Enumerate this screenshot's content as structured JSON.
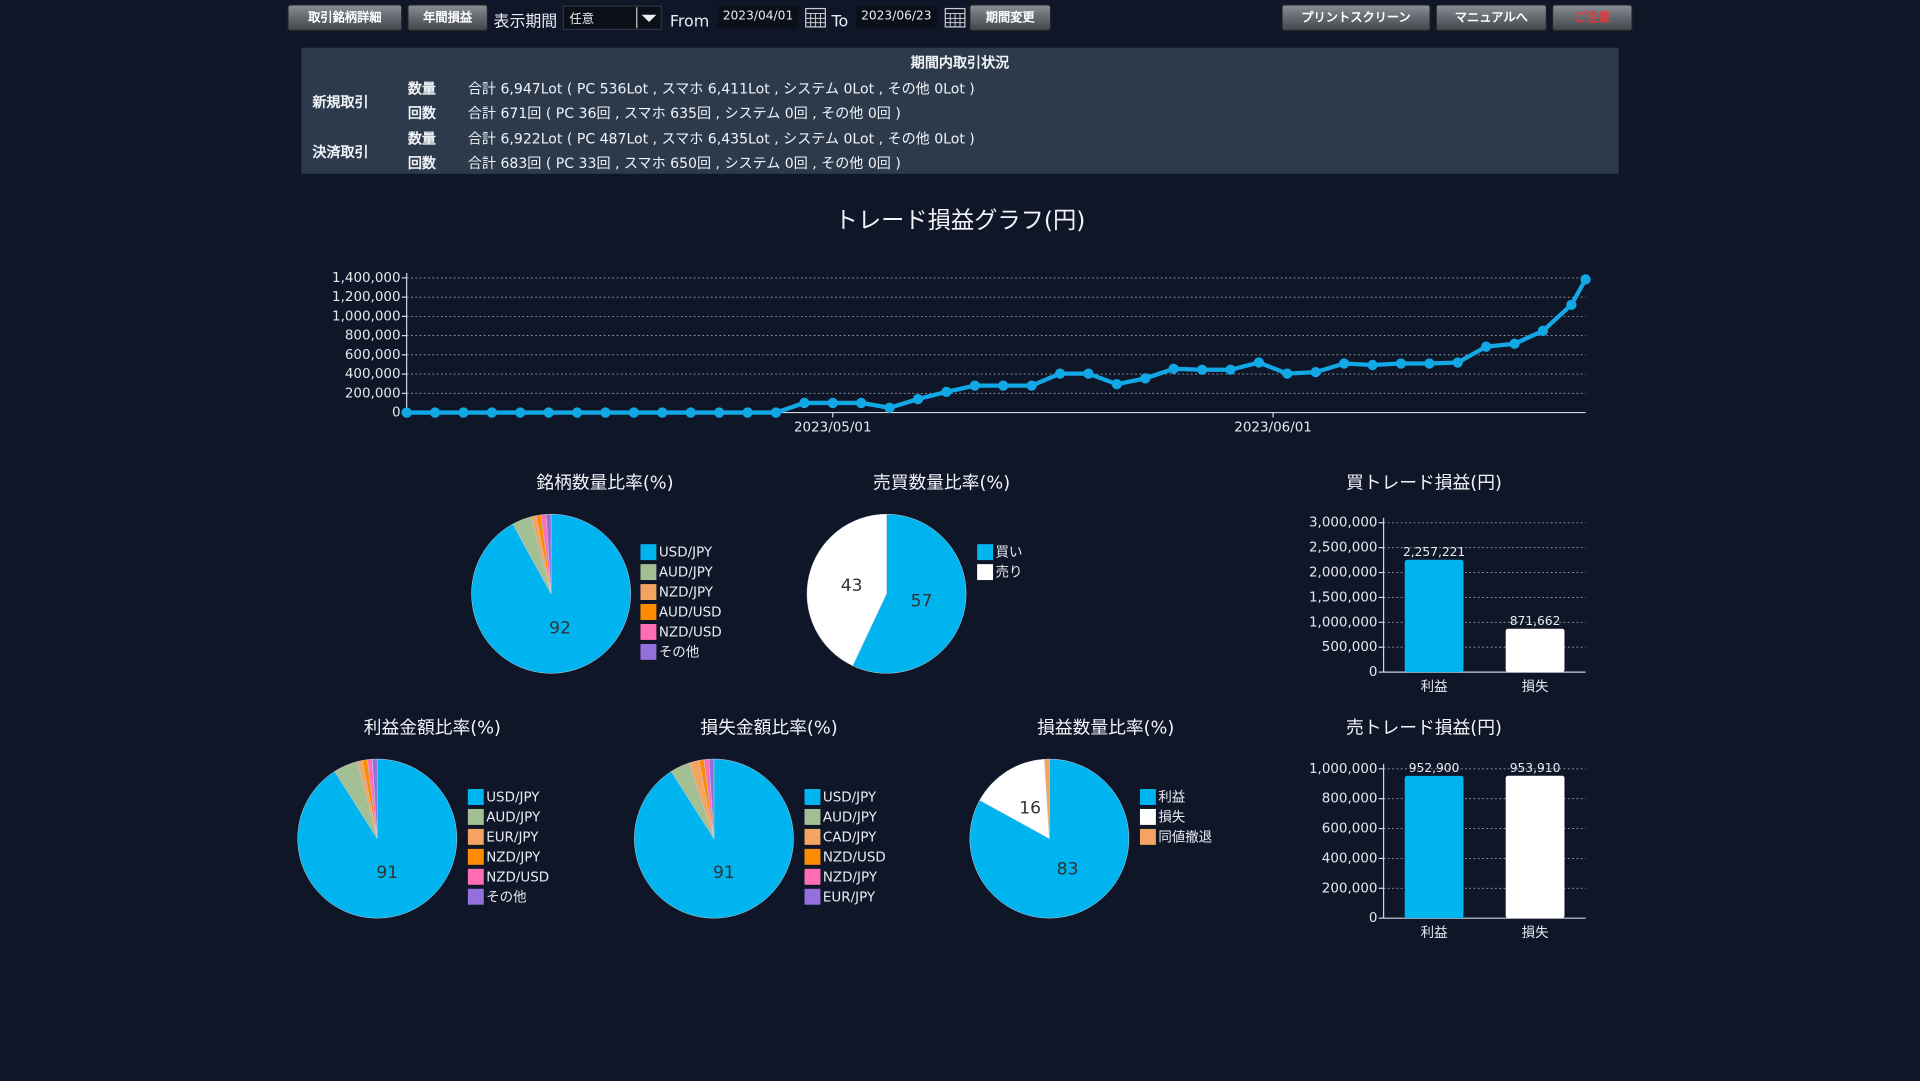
{
  "toolbar": {
    "buttons_left": [
      "取引銘柄詳細",
      "年間損益"
    ],
    "period_label": "表示期間",
    "period_select": "任意",
    "from_label": "From",
    "from_date": "2023/04/01",
    "to_label": "To",
    "to_date": "2023/06/23",
    "change_button": "期間変更",
    "buttons_right": [
      "プリントスクリーン",
      "マニュアルへ",
      "ご注意"
    ]
  },
  "summary": {
    "title": "期間内取引状況",
    "groups": [
      {
        "label": "新規取引",
        "rows": [
          {
            "label": "数量",
            "text": "合計 6,947Lot ( PC 536Lot , スマホ 6,411Lot , システム 0Lot , その他 0Lot )"
          },
          {
            "label": "回数",
            "text": "合計 671回 ( PC 36回 , スマホ 635回 , システム 0回 , その他 0回 )"
          }
        ]
      },
      {
        "label": "決済取引",
        "rows": [
          {
            "label": "数量",
            "text": "合計 6,922Lot ( PC 487Lot , スマホ 6,435Lot , システム 0Lot , その他 0Lot )"
          },
          {
            "label": "回数",
            "text": "合計 683回 ( PC 33回 , スマホ 650回 , システム 0回 , その他 0回 )"
          }
        ]
      }
    ]
  },
  "chart_data": [
    {
      "type": "line",
      "title": "トレード損益グラフ(円)",
      "color": "#12a8e6",
      "x": [
        "2023/04/01",
        "2023/04/03",
        "2023/04/05",
        "2023/04/07",
        "2023/04/09",
        "2023/04/11",
        "2023/04/13",
        "2023/04/15",
        "2023/04/17",
        "2023/04/19",
        "2023/04/21",
        "2023/04/23",
        "2023/04/25",
        "2023/04/27",
        "2023/04/29",
        "2023/05/01",
        "2023/05/03",
        "2023/05/05",
        "2023/05/07",
        "2023/05/09",
        "2023/05/11",
        "2023/05/13",
        "2023/05/15",
        "2023/05/17",
        "2023/05/19",
        "2023/05/21",
        "2023/05/23",
        "2023/05/25",
        "2023/05/27",
        "2023/05/29",
        "2023/05/31",
        "2023/06/02",
        "2023/06/04",
        "2023/06/06",
        "2023/06/08",
        "2023/06/10",
        "2023/06/12",
        "2023/06/14",
        "2023/06/16",
        "2023/06/18",
        "2023/06/20",
        "2023/06/22",
        "2023/06/23"
      ],
      "values": [
        0,
        0,
        0,
        0,
        0,
        0,
        0,
        0,
        0,
        0,
        0,
        0,
        0,
        0,
        100000,
        100000,
        100000,
        50000,
        140000,
        215000,
        280000,
        280000,
        280000,
        405000,
        405000,
        295000,
        355000,
        455000,
        445000,
        445000,
        520000,
        405000,
        420000,
        510000,
        495000,
        510000,
        510000,
        520000,
        685000,
        715000,
        850000,
        1120000,
        1385000
      ],
      "xlim": [
        "2023/04/01",
        "2023/06/23"
      ],
      "xticks": [
        "2023/05/01",
        "2023/06/01"
      ],
      "ylim": [
        0,
        1400000
      ],
      "yticks": [
        0,
        {
          "value": 200000,
          "label": "200,000"
        },
        {
          "value": 400000,
          "label": "400,000"
        },
        {
          "value": 600000,
          "label": "600,000"
        },
        {
          "value": 800000,
          "label": "800,000"
        },
        {
          "value": 1000000,
          "label": "1,000,000"
        },
        {
          "value": 1200000,
          "label": "1,200,000"
        },
        {
          "value": 1400000,
          "label": "1,400,000"
        }
      ],
      "grid": true
    },
    {
      "type": "pie",
      "title": "銘柄数量比率(%)",
      "labels": [
        "USD/JPY",
        "AUD/JPY",
        "NZD/JPY",
        "AUD/USD",
        "NZD/USD",
        "その他"
      ],
      "values": [
        92,
        4,
        1,
        1,
        1,
        1
      ],
      "colors": [
        "#00b4f0",
        "#a3bf94",
        "#f4a460",
        "#ff8c00",
        "#ff6eb4",
        "#9370db"
      ]
    },
    {
      "type": "pie",
      "title": "売買数量比率(%)",
      "labels": [
        "買い",
        "売り"
      ],
      "values": [
        57,
        43
      ],
      "colors": [
        "#00b4f0",
        "#ffffff"
      ]
    },
    {
      "type": "pie",
      "title": "利益金額比率(%)",
      "labels": [
        "USD/JPY",
        "AUD/JPY",
        "EUR/JPY",
        "NZD/JPY",
        "NZD/USD",
        "その他"
      ],
      "values": [
        91,
        5,
        1,
        1,
        1,
        1
      ],
      "colors": [
        "#00b4f0",
        "#a3bf94",
        "#f4a460",
        "#ff8c00",
        "#ff6eb4",
        "#9370db"
      ]
    },
    {
      "type": "pie",
      "title": "損失金額比率(%)",
      "labels": [
        "USD/JPY",
        "AUD/JPY",
        "CAD/JPY",
        "NZD/USD",
        "NZD/JPY",
        "EUR/JPY"
      ],
      "values": [
        91,
        4,
        2,
        1,
        1,
        1
      ],
      "colors": [
        "#00b4f0",
        "#a3bf94",
        "#f4a460",
        "#ff8c00",
        "#ff6eb4",
        "#9370db"
      ]
    },
    {
      "type": "pie",
      "title": "損益数量比率(%)",
      "labels": [
        "利益",
        "損失",
        "同値撤退"
      ],
      "values": [
        83,
        16,
        1
      ],
      "colors": [
        "#00b4f0",
        "#ffffff",
        "#f4a460"
      ]
    },
    {
      "type": "bar",
      "title": "買トレード損益(円)",
      "categories": [
        "利益",
        "損失"
      ],
      "values": [
        2257221,
        871662
      ],
      "value_labels": [
        "2,257,221",
        "871,662"
      ],
      "colors": [
        "#00b4f0",
        "#ffffff"
      ],
      "ylim": [
        0,
        3000000
      ],
      "yticks": [
        0,
        {
          "value": 500000,
          "label": "500,000"
        },
        {
          "value": 1000000,
          "label": "1,000,000"
        },
        {
          "value": 1500000,
          "label": "1,500,000"
        },
        {
          "value": 2000000,
          "label": "2,000,000"
        },
        {
          "value": 2500000,
          "label": "2,500,000"
        },
        {
          "value": 3000000,
          "label": "3,000,000"
        }
      ],
      "grid": true
    },
    {
      "type": "bar",
      "title": "売トレード損益(円)",
      "categories": [
        "利益",
        "損失"
      ],
      "values": [
        952900,
        953910
      ],
      "value_labels": [
        "952,900",
        "953,910"
      ],
      "colors": [
        "#00b4f0",
        "#ffffff"
      ],
      "ylim": [
        0,
        1000000
      ],
      "yticks": [
        0,
        {
          "value": 200000,
          "label": "200,000"
        },
        {
          "value": 400000,
          "label": "400,000"
        },
        {
          "value": 600000,
          "label": "600,000"
        },
        {
          "value": 800000,
          "label": "800,000"
        },
        {
          "value": 1000000,
          "label": "1,000,000"
        }
      ],
      "grid": true
    }
  ]
}
